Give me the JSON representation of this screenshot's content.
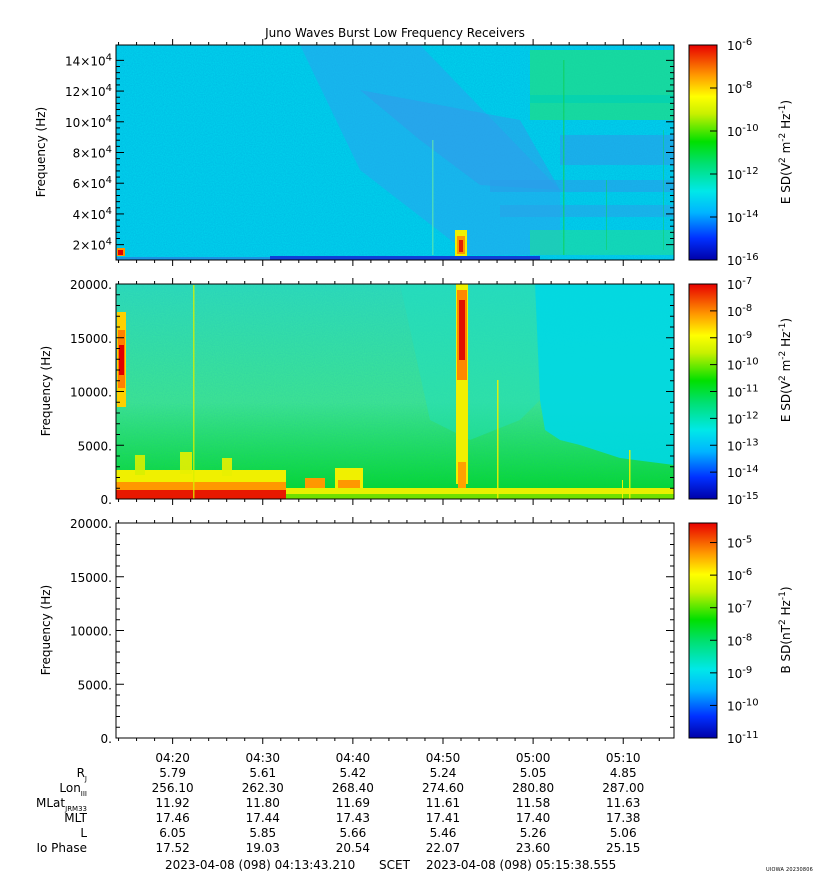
{
  "title": "Juno Waves Burst Low Frequency Receivers",
  "chart_data": [
    {
      "type": "heatmap",
      "name": "panel-1",
      "ylabel": "Frequency (Hz)",
      "ylim": [
        10000,
        150000
      ],
      "yticks": [
        {
          "value": 20000,
          "label": "2×10",
          "exp": "4"
        },
        {
          "value": 40000,
          "label": "4×10",
          "exp": "4"
        },
        {
          "value": 60000,
          "label": "6×10",
          "exp": "4"
        },
        {
          "value": 80000,
          "label": "8×10",
          "exp": "4"
        },
        {
          "value": 100000,
          "label": "10×10",
          "exp": "4"
        },
        {
          "value": 120000,
          "label": "12×10",
          "exp": "4"
        },
        {
          "value": 140000,
          "label": "14×10",
          "exp": "4"
        }
      ],
      "colorbar": {
        "label_main": "E SD(V",
        "label_tail": " Hz",
        "label_close": ")",
        "log_min": -16,
        "log_max": -6,
        "ticks": [
          {
            "value": -6,
            "label": "10",
            "exp": "-6"
          },
          {
            "value": -8,
            "label": "10",
            "exp": "-8"
          },
          {
            "value": -10,
            "label": "10",
            "exp": "-10"
          },
          {
            "value": -12,
            "label": "10",
            "exp": "-12"
          },
          {
            "value": -14,
            "label": "10",
            "exp": "-14"
          },
          {
            "value": -16,
            "label": "10",
            "exp": "-16"
          }
        ]
      }
    },
    {
      "type": "heatmap",
      "name": "panel-2",
      "ylabel": "Frequency (Hz)",
      "ylim": [
        0,
        20000
      ],
      "yticks": [
        {
          "value": 0,
          "label": "0."
        },
        {
          "value": 5000,
          "label": "5000."
        },
        {
          "value": 10000,
          "label": "10000."
        },
        {
          "value": 15000,
          "label": "15000."
        },
        {
          "value": 20000,
          "label": "20000."
        }
      ],
      "colorbar": {
        "label_main": "E SD(V",
        "label_tail": " Hz",
        "label_close": ")",
        "log_min": -15,
        "log_max": -7,
        "ticks": [
          {
            "value": -7,
            "label": "10",
            "exp": "-7"
          },
          {
            "value": -8,
            "label": "10",
            "exp": "-8"
          },
          {
            "value": -9,
            "label": "10",
            "exp": "-9"
          },
          {
            "value": -10,
            "label": "10",
            "exp": "-10"
          },
          {
            "value": -11,
            "label": "10",
            "exp": "-11"
          },
          {
            "value": -12,
            "label": "10",
            "exp": "-12"
          },
          {
            "value": -13,
            "label": "10",
            "exp": "-13"
          },
          {
            "value": -14,
            "label": "10",
            "exp": "-14"
          },
          {
            "value": -15,
            "label": "10",
            "exp": "-15"
          }
        ]
      }
    },
    {
      "type": "heatmap",
      "name": "panel-3",
      "ylabel": "Frequency (Hz)",
      "ylim": [
        0,
        20000
      ],
      "yticks": [
        {
          "value": 0,
          "label": "0."
        },
        {
          "value": 5000,
          "label": "5000."
        },
        {
          "value": 10000,
          "label": "10000."
        },
        {
          "value": 15000,
          "label": "15000."
        },
        {
          "value": 20000,
          "label": "20000."
        }
      ],
      "colorbar": {
        "label_main": "B SD(nT",
        "label_tail": " Hz",
        "label_close": ")",
        "log_min": -11,
        "log_max": -4.4,
        "ticks": [
          {
            "value": -5,
            "label": "10",
            "exp": "-5"
          },
          {
            "value": -6,
            "label": "10",
            "exp": "-6"
          },
          {
            "value": -7,
            "label": "10",
            "exp": "-7"
          },
          {
            "value": -8,
            "label": "10",
            "exp": "-8"
          },
          {
            "value": -9,
            "label": "10",
            "exp": "-9"
          },
          {
            "value": -10,
            "label": "10",
            "exp": "-10"
          },
          {
            "value": -11,
            "label": "10",
            "exp": "-11"
          }
        ]
      }
    }
  ],
  "time_axis": {
    "start": "04:13:43",
    "end": "05:15:38",
    "labels": [
      "04:20",
      "04:30",
      "04:40",
      "04:50",
      "05:00",
      "05:10"
    ]
  },
  "ephemeris": {
    "rows": [
      {
        "label": "R",
        "sub": "J",
        "values": [
          "5.79",
          "5.61",
          "5.42",
          "5.24",
          "5.05",
          "4.85"
        ]
      },
      {
        "label": "Lon",
        "sub": "III",
        "values": [
          "256.10",
          "262.30",
          "268.40",
          "274.60",
          "280.80",
          "287.00"
        ]
      },
      {
        "label": "MLat",
        "sub": "JRM33",
        "values": [
          "11.92",
          "11.80",
          "11.69",
          "11.61",
          "11.58",
          "11.63"
        ]
      },
      {
        "label": "MLT",
        "sub": "",
        "values": [
          "17.46",
          "17.44",
          "17.43",
          "17.41",
          "17.40",
          "17.38"
        ]
      },
      {
        "label": "L",
        "sub": "",
        "values": [
          "6.05",
          "5.85",
          "5.66",
          "5.46",
          "5.26",
          "5.06"
        ]
      },
      {
        "label": "Io Phase",
        "sub": "",
        "values": [
          "17.52",
          "19.03",
          "20.54",
          "22.07",
          "23.60",
          "25.15"
        ]
      }
    ]
  },
  "footer": {
    "start": "2023-04-08 (098) 04:13:43.210",
    "scet": "SCET",
    "end": "2023-04-08 (098) 05:15:38.555",
    "stamp": "UIOWA 20230806"
  }
}
